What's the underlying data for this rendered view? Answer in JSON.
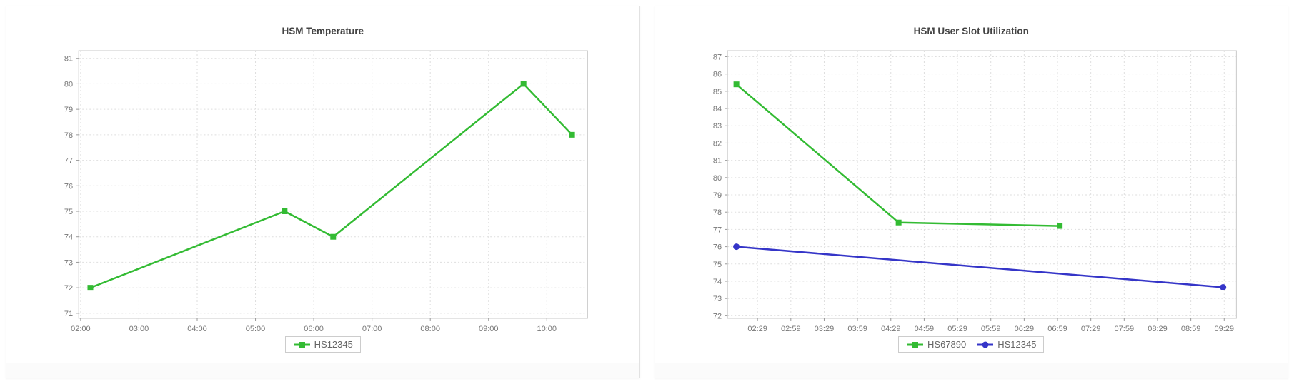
{
  "page": {
    "background_color": "#ffffff",
    "card_background": "#ffffff",
    "card_border_color": "#e2e2e2",
    "grid_color": "#dedede",
    "plot_border_color": "#c9c9c9",
    "tick_color": "#999999",
    "tick_label_color": "#767676",
    "title_color": "#444444",
    "legend_text_color": "#666666"
  },
  "chart_data": [
    {
      "type": "line",
      "title": "HSM Temperature",
      "x_ticks": [
        "02:00",
        "03:00",
        "04:00",
        "05:00",
        "06:00",
        "07:00",
        "08:00",
        "09:00",
        "10:00"
      ],
      "y_ticks": [
        71,
        72,
        73,
        74,
        75,
        76,
        77,
        78,
        79,
        80,
        81
      ],
      "x_domain": [
        "01:58",
        "10:42"
      ],
      "y_domain": [
        70.8,
        81.3
      ],
      "ylim": [
        71,
        81
      ],
      "grid": "dotted",
      "legend_position": "bottom",
      "series": [
        {
          "name": "HS12345",
          "color": "#33bb33",
          "marker": "square",
          "points": [
            {
              "x": "02:10",
              "y": 72
            },
            {
              "x": "05:30",
              "y": 75
            },
            {
              "x": "06:20",
              "y": 74
            },
            {
              "x": "09:36",
              "y": 80
            },
            {
              "x": "10:26",
              "y": 78
            }
          ]
        }
      ]
    },
    {
      "type": "line",
      "title": "HSM User Slot Utilization",
      "x_ticks": [
        "02:29",
        "02:59",
        "03:29",
        "03:59",
        "04:29",
        "04:59",
        "05:29",
        "05:59",
        "06:29",
        "06:59",
        "07:29",
        "07:59",
        "08:29",
        "08:59",
        "09:29"
      ],
      "y_ticks": [
        72,
        73,
        74,
        75,
        76,
        77,
        78,
        79,
        80,
        81,
        82,
        83,
        84,
        85,
        86,
        87
      ],
      "x_domain": [
        "02:02",
        "09:40"
      ],
      "y_domain": [
        71.85,
        87.35
      ],
      "ylim": [
        72,
        87
      ],
      "grid": "dotted",
      "legend_position": "bottom",
      "series": [
        {
          "name": "HS67890",
          "color": "#33bb33",
          "marker": "square",
          "points": [
            {
              "x": "02:10",
              "y": 85.4
            },
            {
              "x": "04:36",
              "y": 77.4
            },
            {
              "x": "07:01",
              "y": 77.2
            }
          ]
        },
        {
          "name": "HS12345",
          "color": "#3535c8",
          "marker": "circle",
          "points": [
            {
              "x": "02:10",
              "y": 76.0
            },
            {
              "x": "09:28",
              "y": 73.65
            }
          ]
        }
      ]
    }
  ]
}
